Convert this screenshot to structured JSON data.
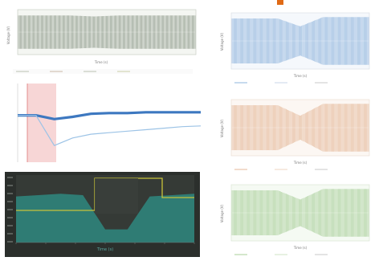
{
  "panels": {
    "top_left": {
      "ylabel": "Voltage (V)",
      "xlabel": "Time (s)"
    },
    "right_blue": {
      "ylabel": "Voltage (V)",
      "xlabel": "Time (s)"
    },
    "right_orange": {
      "ylabel": "Voltage (V)",
      "xlabel": "Time (s)"
    },
    "right_green": {
      "ylabel": "Voltage (V)",
      "xlabel": "Time (s)"
    },
    "bottom_left": {
      "xlabel": "Time (s)"
    }
  },
  "colors": {
    "blue": "#8fb4dc",
    "orange": "#e4b899",
    "green": "#a9cf9a",
    "gray": "#8e9a8a",
    "dark_bg": "#2b2f2c",
    "teal": "#2f7f78",
    "yellow": "#c8c23a",
    "arrow": "#e06a15",
    "thick_blue": "#3d78c0",
    "light_blue": "#9cc3e6",
    "pink": "#f7d6d6"
  },
  "chart_data": [
    {
      "type": "line",
      "panel": "top_left",
      "note_free": true,
      "series": [
        {
          "values": [
            0.8,
            0.8,
            0.8,
            0.75,
            0.8,
            0.8,
            0.8,
            0.8
          ]
        }
      ]
    },
    {
      "type": "line",
      "panel": "middle_left",
      "series": [
        {
          "values": [
            0.6,
            0.6,
            0.55,
            0.58,
            0.62,
            0.63,
            0.63,
            0.64,
            0.64,
            0.64,
            0.64
          ]
        },
        {
          "values": [
            0.6,
            0.6,
            0.2,
            0.3,
            0.35,
            0.37,
            0.39,
            0.41,
            0.43,
            0.45,
            0.46
          ]
        }
      ]
    },
    {
      "type": "line",
      "panel": "bottom_left",
      "series": [
        {
          "values": [
            0.7,
            0.72,
            0.74,
            0.72,
            0.2,
            0.2,
            0.7,
            0.72,
            0.74
          ]
        }
      ]
    },
    {
      "type": "line",
      "panel": "right_blue",
      "series": [
        {
          "values": [
            0.85,
            0.85,
            0.85,
            0.55,
            0.9,
            0.9,
            0.9
          ]
        }
      ]
    },
    {
      "type": "line",
      "panel": "right_orange",
      "series": [
        {
          "values": [
            0.85,
            0.85,
            0.85,
            0.45,
            0.9,
            0.9,
            0.9
          ]
        }
      ]
    },
    {
      "type": "line",
      "panel": "right_green",
      "series": [
        {
          "values": [
            0.85,
            0.85,
            0.85,
            0.5,
            0.9,
            0.9,
            0.9
          ]
        }
      ]
    }
  ]
}
